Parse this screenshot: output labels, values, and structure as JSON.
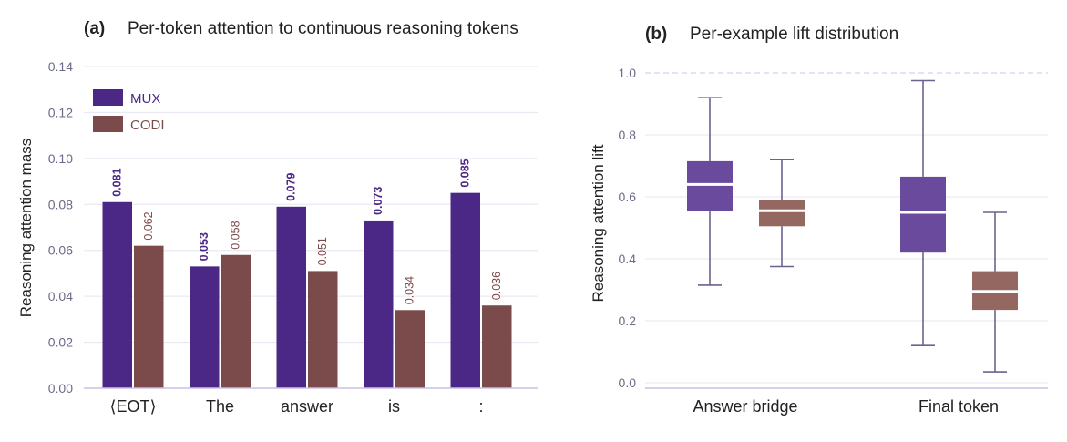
{
  "colors": {
    "mux": "#4b2885",
    "codi": "#7b4a4a",
    "mux_box": "#6a4a9c",
    "codi_box": "#946761",
    "whisker": "#6e6090",
    "grid": "#e6e4f0",
    "axis_line": "#c9c0e6"
  },
  "chart_data": [
    {
      "type": "bar",
      "panel_label": "(a)",
      "title": "Per-token attention to continuous reasoning tokens",
      "xlabel": "",
      "ylabel": "Reasoning attention mass",
      "categories": [
        "⟨EOT⟩",
        "The",
        "answer",
        "is",
        ":"
      ],
      "ylim": [
        0,
        0.14
      ],
      "yticks": [
        "0.00",
        "0.02",
        "0.04",
        "0.06",
        "0.08",
        "0.10",
        "0.12",
        "0.14"
      ],
      "grid": true,
      "legend": "top-left",
      "series": [
        {
          "name": "MUX",
          "values": [
            0.081,
            0.053,
            0.079,
            0.073,
            0.085
          ],
          "labels": [
            "0.081",
            "0.053",
            "0.079",
            "0.073",
            "0.085"
          ]
        },
        {
          "name": "CODI",
          "values": [
            0.062,
            0.058,
            0.051,
            0.034,
            0.036
          ],
          "labels": [
            "0.062",
            "0.058",
            "0.051",
            "0.034",
            "0.036"
          ]
        }
      ]
    },
    {
      "type": "box",
      "panel_label": "(b)",
      "title": "Per-example lift distribution",
      "xlabel": "",
      "ylabel": "Reasoning attention lift",
      "categories": [
        "Answer bridge",
        "Final token"
      ],
      "ylim": [
        -0.02,
        1.05
      ],
      "yticks": [
        "0.0",
        "0.2",
        "0.4",
        "0.6",
        "0.8",
        "1.0"
      ],
      "reference_line": 1.0,
      "grid": true,
      "boxes": [
        {
          "group": "Answer bridge",
          "series": "MUX",
          "whislo": 0.315,
          "q1": 0.555,
          "median": 0.64,
          "q3": 0.715,
          "whishi": 0.92
        },
        {
          "group": "Answer bridge",
          "series": "CODI",
          "whislo": 0.375,
          "q1": 0.505,
          "median": 0.555,
          "q3": 0.59,
          "whishi": 0.72
        },
        {
          "group": "Final token",
          "series": "MUX",
          "whislo": 0.12,
          "q1": 0.42,
          "median": 0.55,
          "q3": 0.665,
          "whishi": 0.975
        },
        {
          "group": "Final token",
          "series": "CODI",
          "whislo": 0.035,
          "q1": 0.235,
          "median": 0.295,
          "q3": 0.36,
          "whishi": 0.55
        }
      ]
    }
  ]
}
